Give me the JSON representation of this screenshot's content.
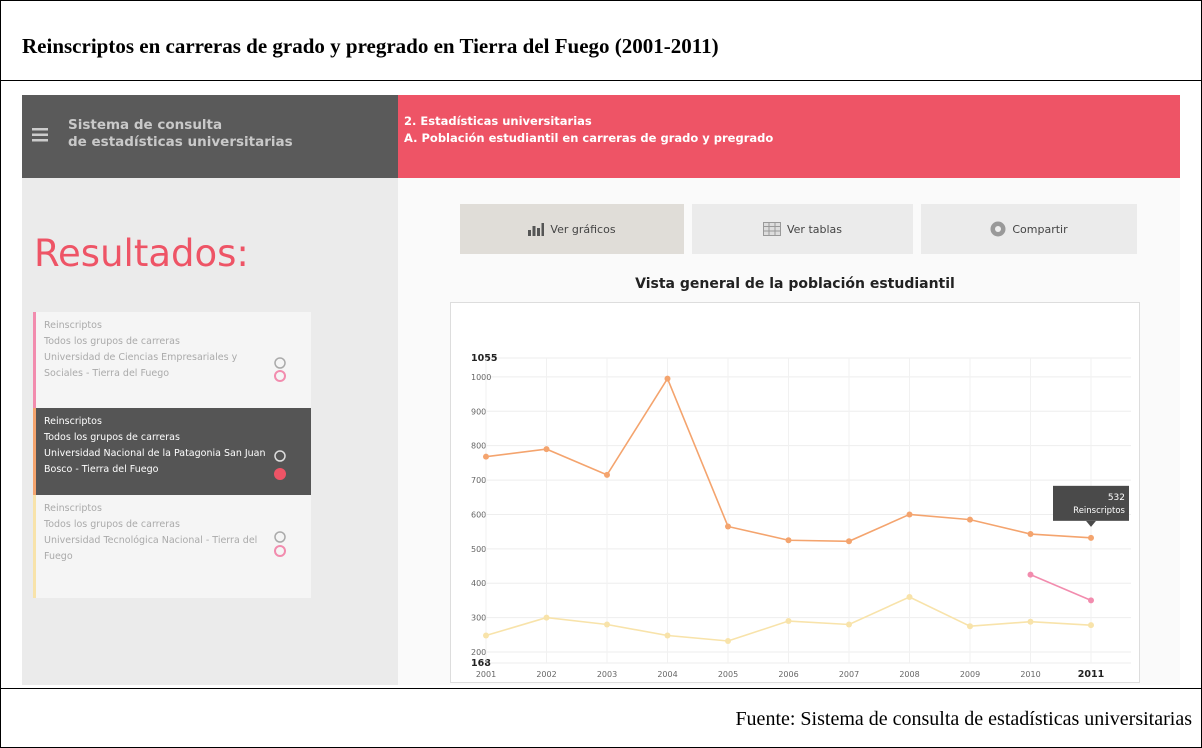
{
  "header": {
    "title": "Reinscriptos en carreras de grado y pregrado en Tierra del Fuego (2001-2011)"
  },
  "app": {
    "brand": [
      "Sistema de consulta",
      "de estadísticas universitarias"
    ],
    "section": [
      "2. Estadísticas universitarias",
      "A. Población estudiantil en carreras de grado y pregrado"
    ]
  },
  "sidebar": {
    "title": "Resultados:",
    "items": [
      {
        "lines": [
          "Reinscriptos",
          "Todos los grupos de carreras",
          "Universidad de Ciencias Empresariales y Sociales - Tierra del Fuego"
        ]
      },
      {
        "lines": [
          "Reinscriptos",
          "Todos los grupos de carreras",
          "Universidad Nacional de la Patagonia San Juan Bosco - Tierra del Fuego"
        ]
      },
      {
        "lines": [
          "Reinscriptos",
          "Todos los grupos de carreras",
          "Universidad Tecnológica Nacional - Tierra del Fuego"
        ]
      }
    ]
  },
  "buttons": [
    "Ver gráficos",
    "Ver tablas",
    "Compartir"
  ],
  "chart_data": {
    "type": "line",
    "title": "Vista general de la población estudiantil",
    "categories": [
      "2001",
      "2002",
      "2003",
      "2004",
      "2005",
      "2006",
      "2007",
      "2008",
      "2009",
      "2010",
      "2011"
    ],
    "series": [
      {
        "color": "#f4a46e",
        "values": [
          768,
          790,
          715,
          995,
          565,
          525,
          522,
          600,
          585,
          543,
          532
        ]
      },
      {
        "color": "#f28cae",
        "values": [
          null,
          null,
          null,
          null,
          null,
          null,
          null,
          null,
          null,
          425,
          350
        ]
      },
      {
        "color": "#f8e3aa",
        "values": [
          248,
          300,
          280,
          248,
          232,
          290,
          280,
          360,
          275,
          288,
          278
        ]
      }
    ],
    "ylim": [
      168,
      1055
    ],
    "yticks": [
      168,
      200,
      300,
      400,
      500,
      600,
      700,
      800,
      900,
      1000,
      1055
    ],
    "grid": true,
    "tooltip_label": "Reinscriptos"
  },
  "footer": {
    "source": "Fuente: Sistema de consulta de estadísticas universitarias"
  }
}
